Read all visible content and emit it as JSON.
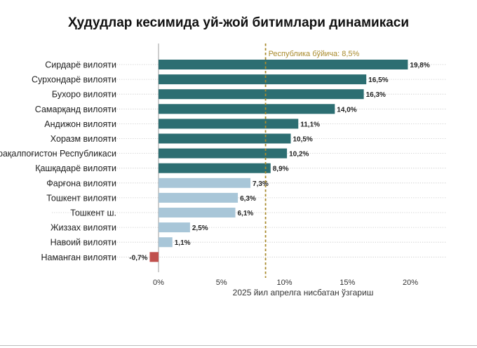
{
  "chart_data": {
    "type": "bar",
    "orientation": "horizontal",
    "title": "Ҳудудлар кесимида уй-жой битимлари динамикаси",
    "xlabel": "2025 йил апрелга нисбатан ўзгариш",
    "ylabel": "",
    "xlim": [
      -1,
      20
    ],
    "xticks": [
      0,
      5,
      10,
      15,
      20
    ],
    "xtick_labels": [
      "0%",
      "5%",
      "10%",
      "15%",
      "20%"
    ],
    "grid": "horizontal-dotted",
    "categories": [
      "Сирдарё вилояти",
      "Сурхондарё вилояти",
      "Бухоро вилояти",
      "Самарқанд вилояти",
      "Андижон вилояти",
      "Хоразм вилояти",
      "Қорақалпоғистон Республикаси",
      "Қашқадарё вилояти",
      "Фарғона вилояти",
      "Тошкент вилояти",
      "Тошкент ш.",
      "Жиззах вилояти",
      "Навоий вилояти",
      "Наманган вилояти"
    ],
    "values": [
      19.8,
      16.5,
      16.3,
      14.0,
      11.1,
      10.5,
      10.2,
      8.9,
      7.3,
      6.3,
      6.1,
      2.5,
      1.1,
      -0.7
    ],
    "value_labels": [
      "19,8%",
      "16,5%",
      "16,3%",
      "14,0%",
      "11,1%",
      "10,5%",
      "10,2%",
      "8,9%",
      "7,3%",
      "6,3%",
      "6,1%",
      "2,5%",
      "1,1%",
      "-0,7%"
    ],
    "reference_line": {
      "value": 8.5,
      "label": "Республика бўйича: 8,5%",
      "color": "#a88a2c"
    },
    "colors": {
      "above": "#2c6e72",
      "below": "#a8c6d8",
      "negative": "#c0504d"
    }
  }
}
